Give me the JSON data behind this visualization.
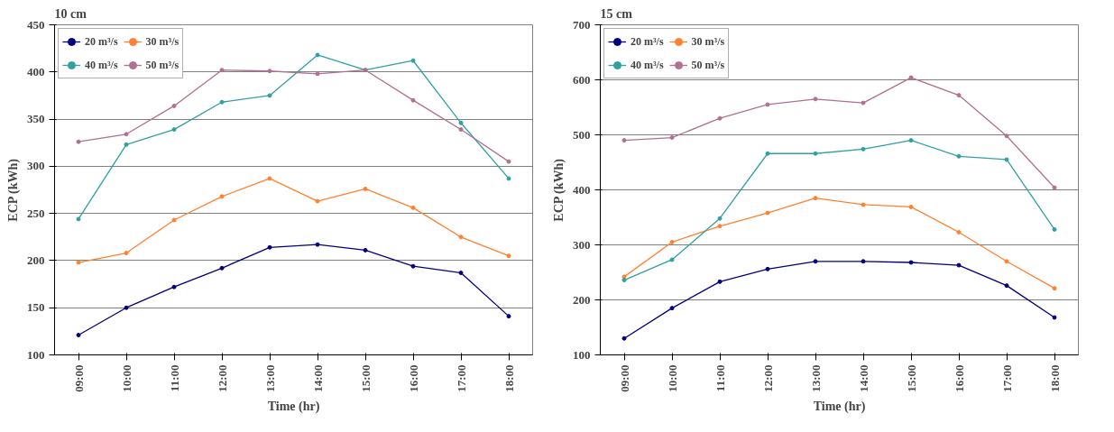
{
  "chart_data": [
    {
      "type": "line",
      "title": "10 cm",
      "xlabel": "Time (hr)",
      "ylabel": "ECP (kWh)",
      "categories": [
        "09:00",
        "10:00",
        "11:00",
        "12:00",
        "13:00",
        "14:00",
        "15:00",
        "16:00",
        "17:00",
        "18:00"
      ],
      "ylim": [
        100,
        450
      ],
      "yticks": [
        100,
        150,
        200,
        250,
        300,
        350,
        400,
        450
      ],
      "grid": "y",
      "legend": "top left",
      "marker": "circle",
      "line_style": "solid",
      "series": [
        {
          "name": "20 m³/s",
          "color": "#000080",
          "values": [
            121,
            150,
            172,
            192,
            214,
            217,
            211,
            194,
            187,
            141
          ]
        },
        {
          "name": "30 m³/s",
          "color": "#ff8030",
          "values": [
            198,
            208,
            243,
            268,
            287,
            263,
            276,
            256,
            225,
            205
          ]
        },
        {
          "name": "40 m³/s",
          "color": "#30a0a0",
          "values": [
            244,
            323,
            339,
            368,
            375,
            418,
            402,
            412,
            346,
            287
          ]
        },
        {
          "name": "50 m³/s",
          "color": "#b07090",
          "values": [
            326,
            334,
            364,
            402,
            401,
            398,
            402,
            370,
            339,
            305
          ]
        }
      ]
    },
    {
      "type": "line",
      "title": "15 cm",
      "xlabel": "Time (hr)",
      "ylabel": "ECP (kWh)",
      "categories": [
        "09:00",
        "10:00",
        "11:00",
        "12:00",
        "13:00",
        "14:00",
        "15:00",
        "16:00",
        "17:00",
        "18:00"
      ],
      "ylim": [
        100,
        700
      ],
      "yticks": [
        100,
        200,
        300,
        400,
        500,
        600,
        700
      ],
      "grid": "y",
      "legend": "top left",
      "marker": "circle",
      "line_style": "solid",
      "series": [
        {
          "name": "20 m³/s",
          "color": "#000080",
          "values": [
            130,
            185,
            233,
            256,
            270,
            270,
            268,
            263,
            226,
            168
          ]
        },
        {
          "name": "30 m³/s",
          "color": "#ff8030",
          "values": [
            242,
            305,
            334,
            358,
            385,
            373,
            369,
            323,
            270,
            221
          ]
        },
        {
          "name": "40 m³/s",
          "color": "#30a0a0",
          "values": [
            236,
            273,
            348,
            466,
            466,
            474,
            490,
            461,
            455,
            328
          ]
        },
        {
          "name": "50 m³/s",
          "color": "#b07090",
          "values": [
            490,
            495,
            530,
            555,
            565,
            558,
            604,
            572,
            498,
            404
          ]
        }
      ]
    }
  ]
}
